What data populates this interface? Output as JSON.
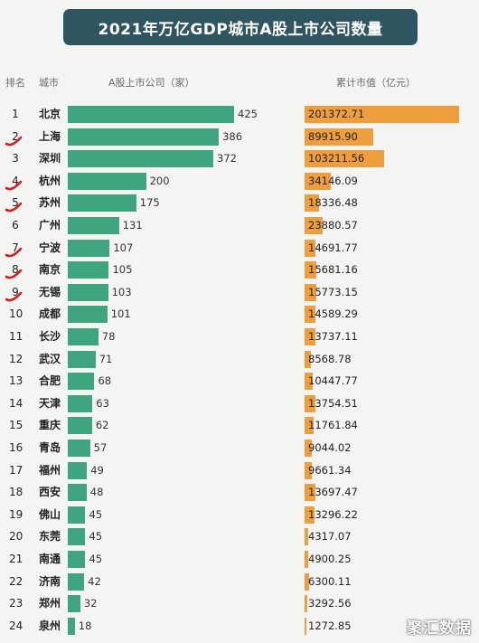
{
  "title": "2021年万亿GDP城市A股上市公司数量",
  "headers": {
    "rank": "排名",
    "city": "城市",
    "companies": "A股上市公司（家）",
    "market_value": "累计市值（亿元）"
  },
  "watermark": "聚汇数据",
  "colors": {
    "title_bg": "#2f5560",
    "companies_bar": "#3fa57e",
    "market_value_bar": "#ee9e3d",
    "hand_marks": "#d11f1f"
  },
  "hand_marked_ranks": [
    2,
    4,
    5,
    7,
    8,
    9
  ],
  "chart_data": {
    "type": "bar",
    "categories": [
      "北京",
      "上海",
      "深圳",
      "杭州",
      "苏州",
      "广州",
      "宁波",
      "南京",
      "无锡",
      "成都",
      "长沙",
      "武汉",
      "合肥",
      "天津",
      "重庆",
      "青岛",
      "福州",
      "西安",
      "佛山",
      "东莞",
      "南通",
      "济南",
      "郑州",
      "泉州"
    ],
    "ranks": [
      1,
      2,
      3,
      4,
      5,
      6,
      7,
      8,
      9,
      10,
      11,
      12,
      13,
      14,
      15,
      16,
      17,
      18,
      19,
      20,
      21,
      22,
      23,
      24
    ],
    "series": [
      {
        "name": "A股上市公司（家）",
        "values": [
          425,
          386,
          372,
          200,
          175,
          131,
          107,
          105,
          103,
          101,
          78,
          71,
          68,
          63,
          62,
          57,
          49,
          48,
          45,
          45,
          45,
          42,
          32,
          18
        ]
      },
      {
        "name": "累计市值（亿元）",
        "values": [
          201372.71,
          89915.9,
          103211.56,
          34146.09,
          18336.48,
          23880.57,
          14691.77,
          15681.16,
          15773.15,
          14589.29,
          13737.11,
          8568.78,
          10447.77,
          13754.51,
          11761.84,
          9044.02,
          9661.34,
          13697.47,
          13296.22,
          4317.07,
          4900.25,
          6300.11,
          3292.56,
          1272.85
        ]
      }
    ],
    "value_labels": [
      [
        "425",
        "386",
        "372",
        "200",
        "175",
        "131",
        "107",
        "105",
        "103",
        "101",
        "78",
        "71",
        "68",
        "63",
        "62",
        "57",
        "49",
        "48",
        "45",
        "45",
        "45",
        "42",
        "32",
        "18"
      ],
      [
        "201372.71",
        "89915.90",
        "103211.56",
        "34146.09",
        "18336.48",
        "23880.57",
        "14691.77",
        "15681.16",
        "15773.15",
        "14589.29",
        "13737.11",
        "8568.78",
        "10447.77",
        "13754.51",
        "11761.84",
        "9044.02",
        "9661.34",
        "13697.47",
        "13296.22",
        "4317.07",
        "4900.25",
        "6300.11",
        "3292.56",
        "1272.85"
      ]
    ]
  }
}
